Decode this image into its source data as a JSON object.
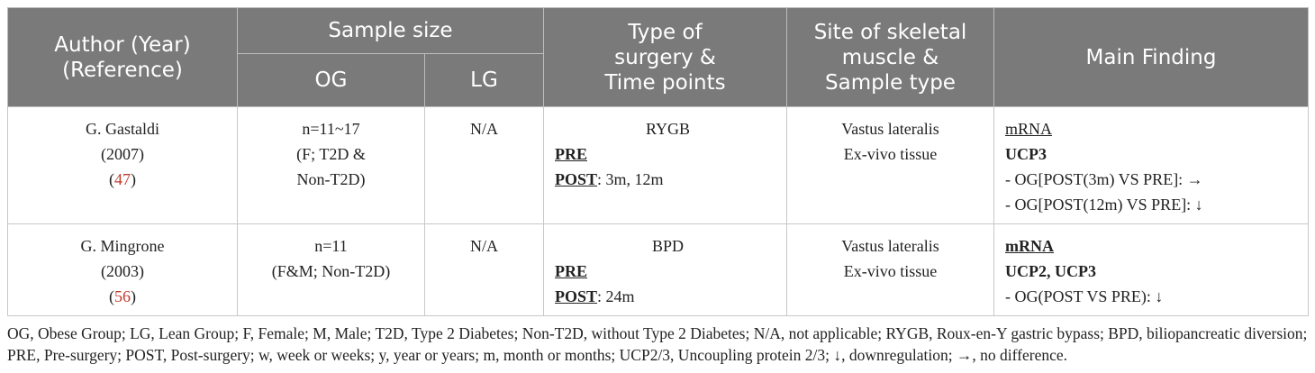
{
  "headers": {
    "author": [
      "Author (Year)",
      "(Reference)"
    ],
    "sample_size": "Sample size",
    "og": "OG",
    "lg": "LG",
    "type": [
      "Type of",
      "surgery &",
      "Time points"
    ],
    "site": [
      "Site of skeletal",
      "muscle &",
      "Sample type"
    ],
    "finding": "Main Finding"
  },
  "rows": [
    {
      "author": "G. Gastaldi",
      "year": "(2007)",
      "ref_open": "(",
      "ref": "47",
      "ref_close": ")",
      "og": [
        "n=11~17",
        "(F; T2D &",
        "Non-T2D)"
      ],
      "lg": "N/A",
      "surgery": "RYGB",
      "pre": "PRE",
      "post": "POST",
      "post_times": ": 3m, 12m",
      "site": "Vastus lateralis",
      "sample": "Ex-vivo tissue",
      "f_label": "mRNA",
      "f_gene": "UCP3",
      "f_lines": [
        "- OG[POST(3m) VS PRE]: →",
        "- OG[POST(12m) VS PRE]: ↓"
      ]
    },
    {
      "author": "G. Mingrone",
      "year": "(2003)",
      "ref_open": "(",
      "ref": "56",
      "ref_close": ")",
      "og": [
        "n=11",
        "(F&M; Non-T2D)"
      ],
      "lg": "N/A",
      "surgery": "BPD",
      "pre": "PRE",
      "post": "POST",
      "post_times": ": 24m",
      "site": "Vastus lateralis",
      "sample": "Ex-vivo tissue",
      "f_label": "mRNA",
      "f_gene": "UCP2, UCP3",
      "f_lines": [
        "- OG(POST VS PRE): ↓"
      ]
    }
  ],
  "footnote": "OG, Obese Group; LG, Lean Group; F, Female; M, Male; T2D, Type 2 Diabetes; Non-T2D, without Type 2 Diabetes; N/A, not applicable; RYGB, Roux-en-Y gastric bypass; BPD, biliopancreatic diversion; PRE, Pre-surgery; POST, Post-surgery; w, week or weeks; y, year or years; m, month or months; UCP2/3, Uncoupling protein 2/3; ↓, downregulation; →, no difference."
}
